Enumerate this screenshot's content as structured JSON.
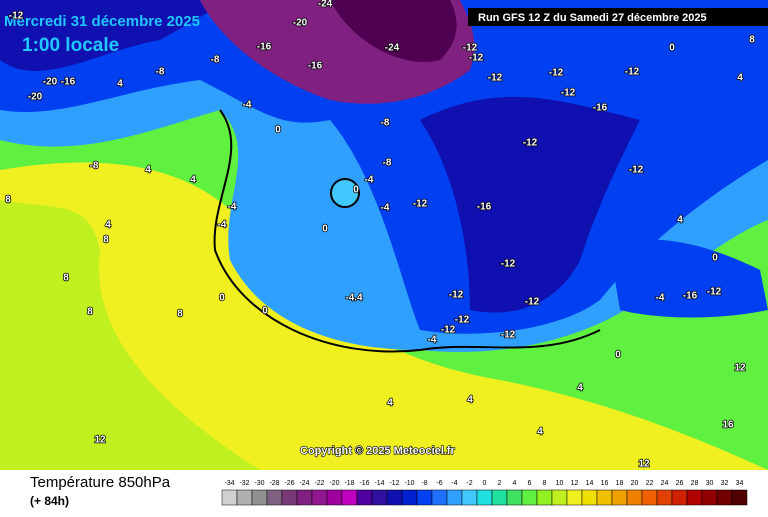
{
  "header": {
    "valid": "Mercredi 31 décembre 2025",
    "local": "1:00 locale",
    "run": "Run GFS 12 Z du Samedi 27 décembre 2025"
  },
  "map": {
    "copyright": "Copyright © 2025 Meteociel.fr",
    "contour_labels": [
      "-12",
      "-16",
      "-8",
      "-16",
      "-20",
      "-24",
      "-24",
      "-12",
      "-12",
      "-12",
      "-12",
      "-12",
      "-16",
      "-12",
      "-12",
      "-12",
      "-16",
      "-12",
      "-12",
      "-12",
      "-12",
      "-12",
      "-12",
      "-12",
      "-4",
      "-4.4",
      "-4",
      "-4",
      "-8",
      "-8",
      "0",
      "-4",
      "-4",
      "0",
      "0",
      "0",
      "4",
      "4",
      "-8",
      "4",
      "-8",
      "-20",
      "-20",
      "-16",
      "8",
      "8",
      "4",
      "8",
      "8",
      "8",
      "12",
      "12",
      "12",
      "16",
      "8",
      "4",
      "0",
      "4",
      "0",
      "-4",
      "-16",
      "-12",
      "4",
      "4",
      "4",
      "4",
      "0",
      "0",
      "-4"
    ]
  },
  "legend": {
    "title": "Température 850hPa",
    "lead": "(+ 84h)",
    "values": [
      -34,
      -32,
      -30,
      -28,
      -26,
      -24,
      -22,
      -20,
      -18,
      -16,
      -14,
      -12,
      -10,
      -8,
      -6,
      -4,
      -2,
      0,
      2,
      4,
      6,
      8,
      10,
      12,
      14,
      16,
      18,
      20,
      22,
      24,
      26,
      28,
      30,
      32,
      34
    ],
    "colors": [
      "#d0d0d0",
      "#b0b0b0",
      "#909090",
      "#806080",
      "#7a3a7a",
      "#802080",
      "#901890",
      "#a000a0",
      "#c000c0",
      "#5000a0",
      "#3010a0",
      "#1010b0",
      "#0020d0",
      "#0040f0",
      "#2070ff",
      "#30a0ff",
      "#40c8ff",
      "#20e0e0",
      "#20e0a0",
      "#40e060",
      "#60f040",
      "#90f020",
      "#c0f020",
      "#f0f020",
      "#f0e000",
      "#f0c000",
      "#f0a000",
      "#f08000",
      "#f06000",
      "#e04000",
      "#d02000",
      "#b00000",
      "#900000",
      "#700000",
      "#500000"
    ]
  }
}
